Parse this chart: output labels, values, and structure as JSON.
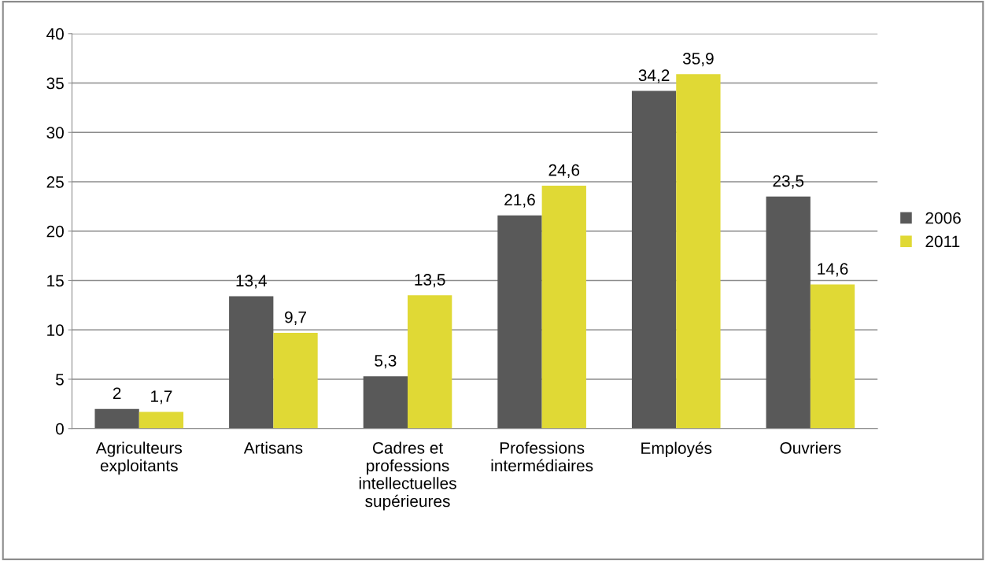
{
  "chart_data": {
    "type": "bar",
    "categories": [
      "Agriculteurs\nexploitants",
      "Artisans",
      "Cadres et\nprofessions\nintellectuelles\nsupérieures",
      "Professions\nintermédiaires",
      "Employés",
      "Ouvriers"
    ],
    "series": [
      {
        "name": "2006",
        "color": "#595959",
        "values": [
          2,
          13.4,
          5.3,
          21.6,
          34.2,
          23.5
        ],
        "value_labels": [
          "2",
          "13,4",
          "5,3",
          "21,6",
          "34,2",
          "23,5"
        ]
      },
      {
        "name": "2011",
        "color": "#e0d935",
        "values": [
          1.7,
          9.7,
          13.5,
          24.6,
          35.9,
          14.6
        ],
        "value_labels": [
          "1,7",
          "9,7",
          "13,5",
          "24,6",
          "35,9",
          "14,6"
        ]
      }
    ],
    "ylim": [
      0,
      40
    ],
    "yticks": [
      0,
      5,
      10,
      15,
      20,
      25,
      30,
      35,
      40
    ],
    "grid": "y",
    "legend": "right"
  }
}
